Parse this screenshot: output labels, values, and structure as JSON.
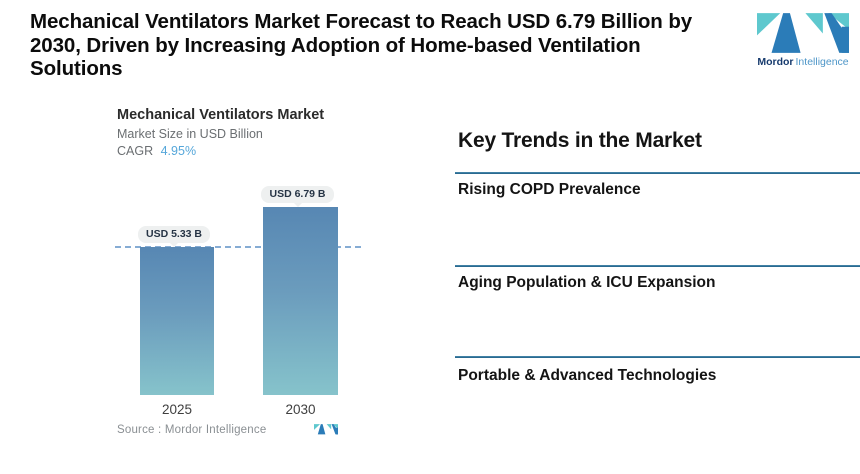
{
  "header": {
    "title_lines": [
      "Mechanical Ventilators Market Forecast to Reach USD 6.79 Billion by",
      "2030, Driven by Increasing Adoption of Home-based Ventilation",
      "Solutions"
    ],
    "logo": {
      "brand_bold": "Mordor",
      "brand_light": "Intelligence"
    }
  },
  "chart_data": {
    "type": "bar",
    "title": "Mechanical Ventilators Market",
    "subtitle": "Market Size in USD Billion",
    "unit": "USD Billion",
    "cagr_label": "CAGR",
    "cagr_value": "4.95%",
    "categories": [
      "2025",
      "2030"
    ],
    "values": [
      5.33,
      6.79
    ],
    "value_labels": [
      "USD 5.33 B",
      "USD 6.79 B"
    ],
    "reference_value": 5.33,
    "ylim": [
      0,
      6.79
    ],
    "grid": "off",
    "source": "Source :  Mordor Intelligence"
  },
  "trends": {
    "heading": "Key Trends in the Market",
    "items": [
      "Rising COPD Prevalence",
      "Aging Population & ICU Expansion",
      "Portable & Advanced Technologies"
    ]
  },
  "colors": {
    "bar_gradient_top": "#5787b3",
    "bar_gradient_bottom": "#86c3cb",
    "dashed_reference_line": "#86acd4",
    "trend_divider": "#2e6e93",
    "cagr_value_text": "#56a7da",
    "callout_background": "#eef0f0",
    "logo_teal": "#5ec8ce",
    "logo_blue": "#2b7cb8",
    "logo_dark_navy": "#163a6d"
  }
}
